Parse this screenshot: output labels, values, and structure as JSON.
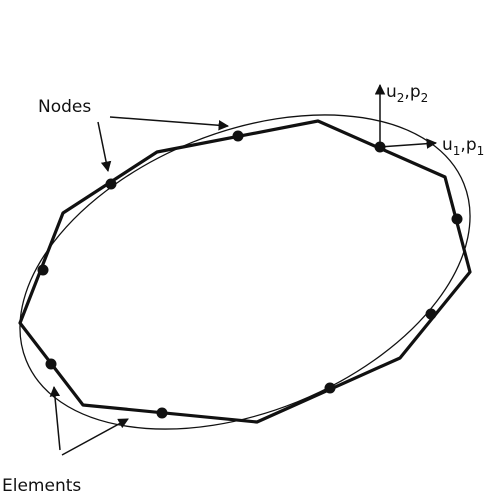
{
  "labels": {
    "nodes": "Nodes",
    "elements": "Elements",
    "dof2": {
      "parts": [
        "u",
        "2",
        ",p",
        "2"
      ]
    },
    "dof1": {
      "parts": [
        "u",
        "1",
        ",p",
        "1"
      ]
    }
  }
}
